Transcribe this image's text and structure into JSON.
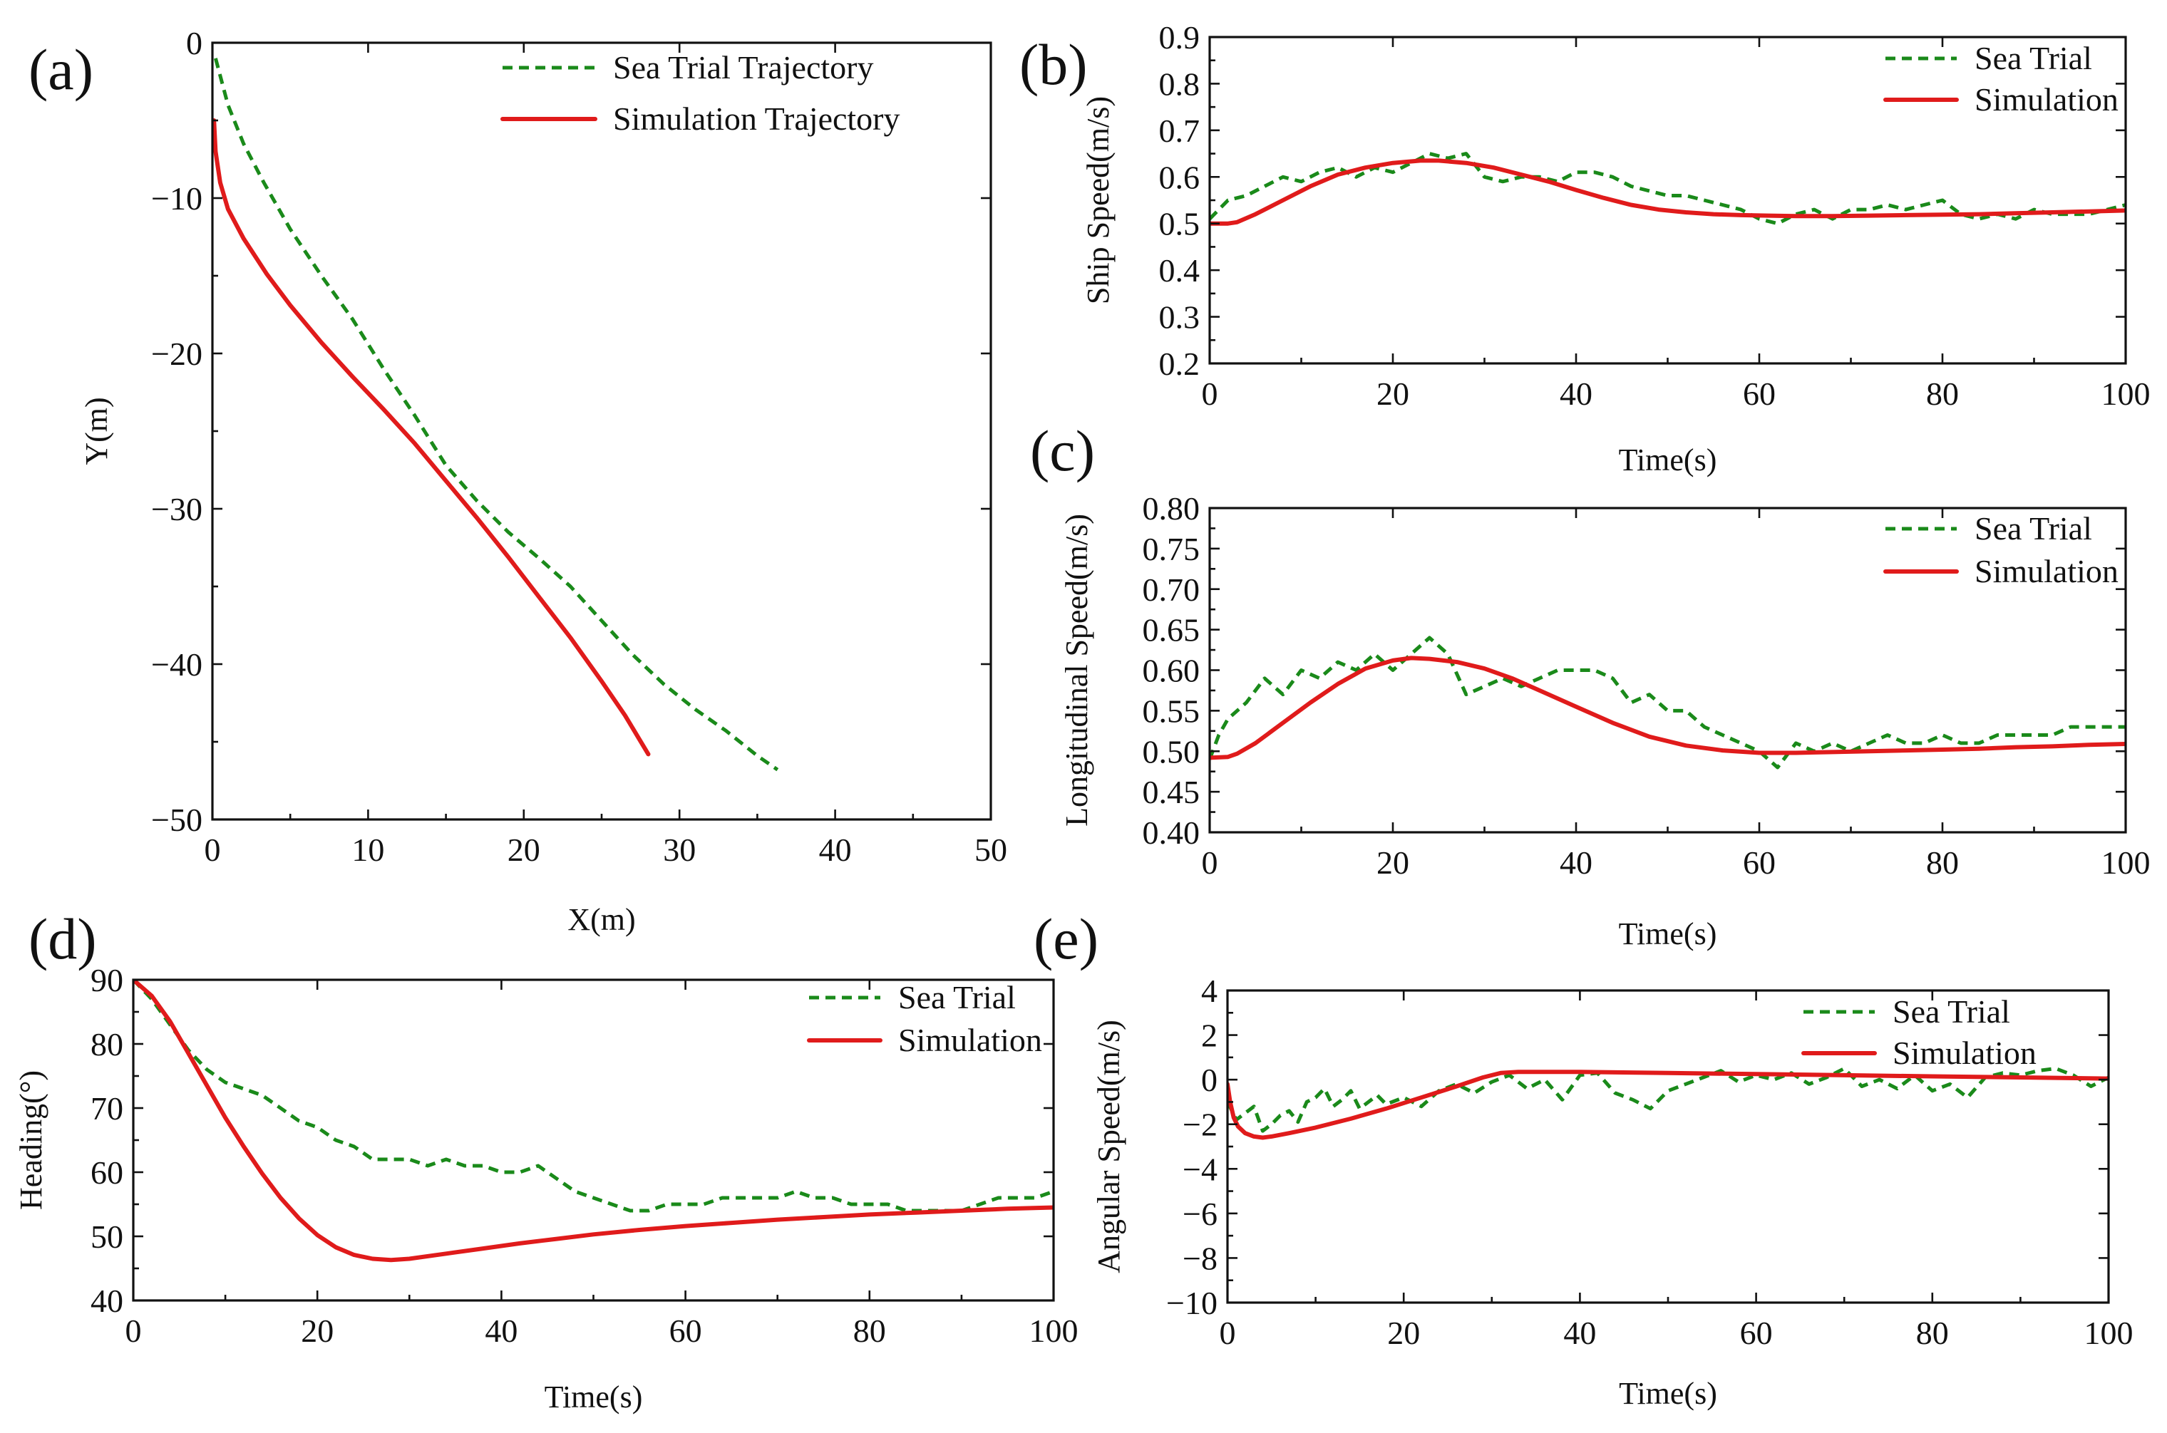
{
  "figure": {
    "panel_labels": [
      "(a)",
      "(b)",
      "(c)",
      "(d)",
      "(e)"
    ]
  },
  "colors": {
    "sea_trial": "#1a8a1a",
    "simulation": "#e01b1b",
    "axis": "#111111"
  },
  "chart_data": [
    {
      "id": "a",
      "type": "line",
      "label": "(a)",
      "xlabel": "X(m)",
      "ylabel": "Y(m)",
      "xlim": [
        0,
        50
      ],
      "ylim": [
        -50,
        0
      ],
      "xticks": [
        0,
        10,
        20,
        30,
        40,
        50
      ],
      "yticks": [
        0,
        -10,
        -20,
        -30,
        -40,
        -50
      ],
      "legend_loc": "top-right",
      "series": [
        {
          "name": "Sea Trial Trajectory",
          "style": "dashed",
          "x": [
            0.2,
            1.0,
            2.0,
            3.3,
            5.0,
            7.0,
            9.0,
            11.0,
            13.0,
            15.0,
            17.0,
            19.0,
            21.0,
            23.0,
            25.0,
            27.0,
            29.0,
            31.0,
            33.0,
            35.0,
            36.3
          ],
          "y": [
            -1.0,
            -4.0,
            -6.5,
            -9.0,
            -12.0,
            -15.0,
            -17.8,
            -21.0,
            -24.0,
            -27.2,
            -29.5,
            -31.5,
            -33.2,
            -35.0,
            -37.2,
            -39.4,
            -41.3,
            -42.9,
            -44.3,
            -45.9,
            -46.8
          ]
        },
        {
          "name": "Simulation Trajectory",
          "style": "solid",
          "x": [
            0.1,
            0.2,
            0.5,
            1.0,
            2.0,
            3.5,
            5.0,
            7.0,
            9.0,
            11.0,
            13.0,
            15.0,
            17.0,
            19.0,
            21.0,
            23.0,
            25.0,
            26.5,
            28.0
          ],
          "y": [
            -5.0,
            -7.0,
            -9.0,
            -10.7,
            -12.6,
            -14.9,
            -16.9,
            -19.3,
            -21.5,
            -23.6,
            -25.8,
            -28.2,
            -30.6,
            -33.1,
            -35.7,
            -38.3,
            -41.1,
            -43.3,
            -45.8
          ]
        }
      ]
    },
    {
      "id": "b",
      "type": "line",
      "label": "(b)",
      "xlabel": "Time(s)",
      "ylabel": "Ship Speed(m/s)",
      "xlim": [
        0,
        100
      ],
      "ylim": [
        0.2,
        0.9
      ],
      "xticks": [
        0,
        20,
        40,
        60,
        80,
        100
      ],
      "yticks": [
        0.2,
        0.3,
        0.4,
        0.5,
        0.6,
        0.7,
        0.8,
        0.9
      ],
      "legend_loc": "top-right",
      "series": [
        {
          "name": "Sea Trial",
          "style": "dashed",
          "x": [
            0,
            2,
            4,
            6,
            8,
            10,
            12,
            14,
            16,
            18,
            20,
            22,
            24,
            26,
            28,
            30,
            32,
            34,
            36,
            38,
            40,
            42,
            44,
            46,
            48,
            50,
            52,
            54,
            56,
            58,
            60,
            62,
            64,
            66,
            68,
            70,
            72,
            74,
            76,
            78,
            80,
            82,
            84,
            86,
            88,
            90,
            92,
            94,
            96,
            98,
            100
          ],
          "y": [
            0.51,
            0.55,
            0.56,
            0.58,
            0.6,
            0.59,
            0.61,
            0.62,
            0.6,
            0.62,
            0.61,
            0.63,
            0.65,
            0.64,
            0.65,
            0.6,
            0.59,
            0.6,
            0.6,
            0.59,
            0.61,
            0.61,
            0.6,
            0.58,
            0.57,
            0.56,
            0.56,
            0.55,
            0.54,
            0.53,
            0.51,
            0.5,
            0.52,
            0.53,
            0.51,
            0.53,
            0.53,
            0.54,
            0.53,
            0.54,
            0.55,
            0.52,
            0.51,
            0.52,
            0.51,
            0.53,
            0.52,
            0.52,
            0.52,
            0.53,
            0.54
          ]
        },
        {
          "name": "Simulation",
          "style": "solid",
          "x": [
            0,
            2,
            3,
            5,
            8,
            11,
            14,
            17,
            20,
            23,
            25,
            28,
            31,
            34,
            37,
            40,
            43,
            46,
            49,
            52,
            55,
            58,
            61,
            64,
            68,
            72,
            76,
            80,
            84,
            88,
            92,
            96,
            100
          ],
          "y": [
            0.5,
            0.5,
            0.503,
            0.52,
            0.55,
            0.58,
            0.605,
            0.62,
            0.63,
            0.635,
            0.635,
            0.63,
            0.62,
            0.605,
            0.59,
            0.572,
            0.555,
            0.54,
            0.53,
            0.524,
            0.52,
            0.518,
            0.517,
            0.516,
            0.516,
            0.517,
            0.518,
            0.519,
            0.52,
            0.522,
            0.524,
            0.526,
            0.528
          ]
        }
      ]
    },
    {
      "id": "c",
      "type": "line",
      "label": "(c)",
      "xlabel": "Time(s)",
      "ylabel": "Longitudinal Speed(m/s)",
      "xlim": [
        0,
        100
      ],
      "ylim": [
        0.4,
        0.8
      ],
      "xticks": [
        0,
        20,
        40,
        60,
        80,
        100
      ],
      "yticks": [
        0.4,
        0.45,
        0.5,
        0.55,
        0.6,
        0.65,
        0.7,
        0.75,
        0.8
      ],
      "ytick_labels": [
        "0.40",
        "0.45",
        "0.50",
        "0.55",
        "0.60",
        "0.65",
        "0.70",
        "0.75",
        "0.80"
      ],
      "legend_loc": "top-right",
      "series": [
        {
          "name": "Sea Trial",
          "style": "dashed",
          "x": [
            0,
            1,
            2,
            4,
            6,
            8,
            10,
            12,
            14,
            16,
            18,
            20,
            22,
            24,
            26,
            28,
            30,
            32,
            34,
            36,
            38,
            40,
            42,
            44,
            46,
            48,
            50,
            52,
            54,
            56,
            58,
            60,
            62,
            64,
            66,
            68,
            70,
            72,
            74,
            76,
            78,
            80,
            82,
            84,
            86,
            88,
            90,
            92,
            94,
            96,
            98,
            100
          ],
          "y": [
            0.49,
            0.52,
            0.54,
            0.56,
            0.59,
            0.57,
            0.6,
            0.59,
            0.61,
            0.6,
            0.62,
            0.6,
            0.62,
            0.64,
            0.62,
            0.57,
            0.58,
            0.59,
            0.58,
            0.59,
            0.6,
            0.6,
            0.6,
            0.59,
            0.56,
            0.57,
            0.55,
            0.55,
            0.53,
            0.52,
            0.51,
            0.5,
            0.48,
            0.51,
            0.5,
            0.51,
            0.5,
            0.51,
            0.52,
            0.51,
            0.51,
            0.52,
            0.51,
            0.51,
            0.52,
            0.52,
            0.52,
            0.52,
            0.53,
            0.53,
            0.53,
            0.53
          ]
        },
        {
          "name": "Simulation",
          "style": "solid",
          "x": [
            0,
            2,
            3,
            5,
            8,
            11,
            14,
            17,
            20,
            22,
            24,
            27,
            30,
            33,
            36,
            40,
            44,
            48,
            52,
            56,
            60,
            64,
            68,
            72,
            76,
            80,
            84,
            88,
            92,
            96,
            100
          ],
          "y": [
            0.492,
            0.493,
            0.497,
            0.51,
            0.535,
            0.56,
            0.583,
            0.602,
            0.612,
            0.615,
            0.614,
            0.61,
            0.602,
            0.59,
            0.575,
            0.555,
            0.535,
            0.518,
            0.507,
            0.501,
            0.498,
            0.498,
            0.499,
            0.5,
            0.501,
            0.502,
            0.503,
            0.505,
            0.506,
            0.508,
            0.509
          ]
        }
      ]
    },
    {
      "id": "d",
      "type": "line",
      "label": "(d)",
      "xlabel": "Time(s)",
      "ylabel": "Heading(°)",
      "xlim": [
        0,
        100
      ],
      "ylim": [
        40,
        90
      ],
      "xticks": [
        0,
        20,
        40,
        60,
        80,
        100
      ],
      "yticks": [
        40,
        50,
        60,
        70,
        80,
        90
      ],
      "legend_loc": "top-right",
      "series": [
        {
          "name": "Sea Trial",
          "style": "dashed",
          "x": [
            0,
            2,
            4,
            6,
            8,
            10,
            12,
            14,
            16,
            18,
            20,
            22,
            24,
            26,
            28,
            30,
            32,
            34,
            36,
            38,
            40,
            42,
            44,
            46,
            48,
            50,
            52,
            54,
            56,
            58,
            60,
            62,
            64,
            66,
            68,
            70,
            72,
            74,
            76,
            78,
            80,
            82,
            84,
            86,
            88,
            90,
            92,
            94,
            96,
            98,
            100
          ],
          "y": [
            90,
            87,
            83,
            79,
            76,
            74,
            73,
            72,
            70,
            68,
            67,
            65,
            64,
            62,
            62,
            62,
            61,
            62,
            61,
            61,
            60,
            60,
            61,
            59,
            57,
            56,
            55,
            54,
            54,
            55,
            55,
            55,
            56,
            56,
            56,
            56,
            57,
            56,
            56,
            55,
            55,
            55,
            54,
            54,
            54,
            54,
            55,
            56,
            56,
            56,
            57
          ]
        },
        {
          "name": "Simulation",
          "style": "solid",
          "x": [
            0,
            2,
            4,
            6,
            8,
            10,
            12,
            14,
            16,
            18,
            20,
            22,
            24,
            26,
            28,
            30,
            34,
            38,
            42,
            46,
            50,
            55,
            60,
            65,
            70,
            75,
            80,
            85,
            90,
            95,
            100
          ],
          "y": [
            90,
            87.5,
            83.5,
            78.5,
            73.5,
            68.5,
            64,
            59.8,
            56,
            52.8,
            50.2,
            48.3,
            47.1,
            46.5,
            46.3,
            46.5,
            47.3,
            48.1,
            48.9,
            49.6,
            50.3,
            51.0,
            51.6,
            52.1,
            52.6,
            53.0,
            53.4,
            53.7,
            54.0,
            54.3,
            54.5
          ]
        }
      ]
    },
    {
      "id": "e",
      "type": "line",
      "label": "(e)",
      "xlabel": "Time(s)",
      "ylabel": "Angular Speed(m/s)",
      "xlim": [
        0,
        100
      ],
      "ylim": [
        -10,
        4
      ],
      "xticks": [
        0,
        20,
        40,
        60,
        80,
        100
      ],
      "yticks": [
        -10,
        -8,
        -6,
        -4,
        -2,
        0,
        2,
        4
      ],
      "legend_loc": "top-right",
      "series": [
        {
          "name": "Sea Trial",
          "style": "dashed",
          "x": [
            0,
            1,
            2,
            3,
            4,
            5,
            6,
            7,
            8,
            9,
            10,
            11,
            12,
            13,
            14,
            15,
            16,
            17,
            18,
            20,
            22,
            24,
            26,
            28,
            30,
            32,
            34,
            36,
            38,
            40,
            42,
            44,
            46,
            48,
            50,
            52,
            54,
            56,
            58,
            60,
            62,
            64,
            66,
            68,
            70,
            72,
            74,
            76,
            78,
            80,
            82,
            84,
            86,
            88,
            90,
            92,
            94,
            96,
            98,
            100
          ],
          "y": [
            -1.0,
            -1.8,
            -1.5,
            -1.2,
            -2.3,
            -2.0,
            -1.6,
            -1.4,
            -1.9,
            -1.0,
            -0.8,
            -0.4,
            -1.2,
            -0.9,
            -0.5,
            -1.3,
            -1.0,
            -0.7,
            -1.1,
            -0.8,
            -1.2,
            -0.5,
            -0.2,
            -0.6,
            -0.1,
            0.2,
            -0.4,
            0.0,
            -0.9,
            0.2,
            0.3,
            -0.6,
            -0.9,
            -1.3,
            -0.5,
            -0.2,
            0.1,
            0.4,
            -0.1,
            0.2,
            0.0,
            0.3,
            -0.2,
            0.1,
            0.5,
            -0.3,
            0.0,
            -0.4,
            0.2,
            -0.5,
            -0.2,
            -0.8,
            0.1,
            0.3,
            0.2,
            0.4,
            0.5,
            0.2,
            -0.3,
            0.1
          ]
        },
        {
          "name": "Simulation",
          "style": "solid",
          "x": [
            0,
            0.3,
            0.7,
            1.2,
            2,
            3,
            4,
            5,
            7,
            10,
            14,
            18,
            22,
            26,
            29,
            31,
            33,
            40,
            50,
            60,
            70,
            80,
            90,
            100
          ],
          "y": [
            -0.2,
            -1.0,
            -1.7,
            -2.1,
            -2.4,
            -2.55,
            -2.6,
            -2.55,
            -2.4,
            -2.15,
            -1.75,
            -1.3,
            -0.8,
            -0.3,
            0.1,
            0.3,
            0.35,
            0.35,
            0.3,
            0.25,
            0.2,
            0.15,
            0.1,
            0.05
          ]
        }
      ]
    }
  ]
}
